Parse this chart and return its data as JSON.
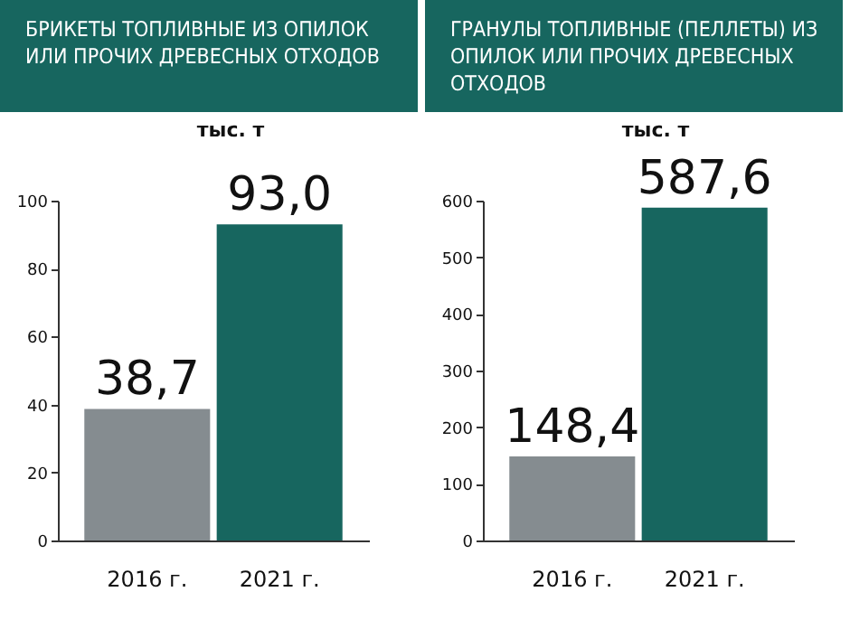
{
  "chart_data": [
    {
      "type": "bar",
      "title": "БРИКЕТЫ ТОПЛИВНЫЕ ИЗ ОПИЛОК ИЛИ ПРОЧИХ ДРЕВЕСНЫХ ОТХОДОВ",
      "ylabel": "тыс. т",
      "categories": [
        "2016 г.",
        "2021 г."
      ],
      "values": [
        38.7,
        93.0
      ],
      "colors": [
        "#858c90",
        "#17665f"
      ],
      "ylim": [
        0,
        100
      ],
      "yticks": [
        0,
        20,
        40,
        60,
        80,
        100
      ],
      "value_labels": [
        "38,7",
        "93,0"
      ]
    },
    {
      "type": "bar",
      "title": "ГРАНУЛЫ ТОПЛИВНЫЕ (ПЕЛЛЕТЫ) ИЗ ОПИЛОК ИЛИ ПРОЧИХ ДРЕВЕСНЫХ ОТХОДОВ",
      "ylabel": "тыс. т",
      "categories": [
        "2016 г.",
        "2021 г."
      ],
      "values": [
        148.4,
        587.6
      ],
      "colors": [
        "#858c90",
        "#17665f"
      ],
      "ylim": [
        0,
        600
      ],
      "yticks": [
        0,
        100,
        200,
        300,
        400,
        500,
        600
      ],
      "value_labels": [
        "148,4",
        "587,6"
      ]
    }
  ]
}
